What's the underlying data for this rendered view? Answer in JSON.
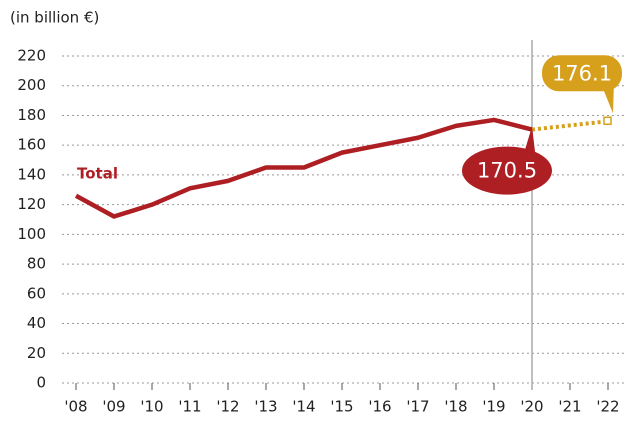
{
  "chart_data": {
    "type": "line",
    "ylabel": "(in billion €)",
    "categories": [
      "'08",
      "'09",
      "'10",
      "'11",
      "'12",
      "'13",
      "'14",
      "'15",
      "'16",
      "'17",
      "'18",
      "'19",
      "'20",
      "'21",
      "'22"
    ],
    "series": [
      {
        "name": "Total",
        "color": "#ae1f24",
        "values": [
          126,
          112,
          120,
          131,
          136,
          145,
          145,
          155,
          160,
          165,
          173,
          177,
          170.5,
          null,
          null
        ]
      },
      {
        "color": "#d6a01c",
        "style": "dotted",
        "values": [
          null,
          null,
          null,
          null,
          null,
          null,
          null,
          null,
          null,
          null,
          null,
          null,
          170.5,
          173.3,
          176.1
        ]
      }
    ],
    "ylim": [
      0,
      220
    ],
    "yticks": [
      0,
      20,
      40,
      60,
      80,
      100,
      120,
      140,
      160,
      180,
      200,
      220
    ],
    "grid": true
  }
}
